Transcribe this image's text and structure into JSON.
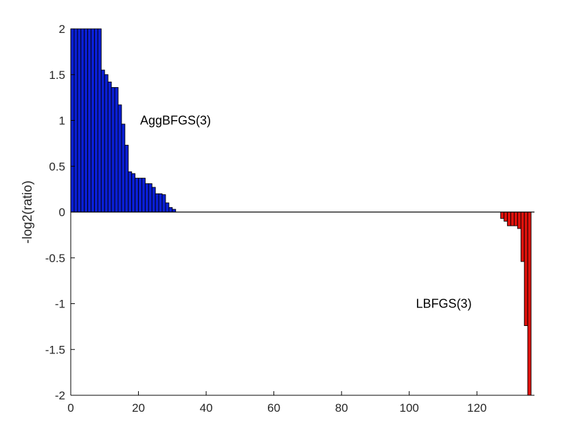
{
  "chart_data": {
    "type": "bar",
    "ylabel": "-log2(ratio)",
    "xlabel": "",
    "title": "",
    "xlim": [
      0,
      137
    ],
    "ylim": [
      -2,
      2
    ],
    "xticks": [
      0,
      20,
      40,
      60,
      80,
      100,
      120
    ],
    "yticks": [
      2,
      1.5,
      1,
      0.5,
      0,
      -0.5,
      -1,
      -1.5,
      -2
    ],
    "grid": false,
    "series": [
      {
        "color": "#0a1fd6",
        "x": [
          1,
          2,
          3,
          4,
          5,
          6,
          7,
          8,
          9,
          10,
          11,
          12,
          13,
          14,
          15,
          16,
          17,
          18,
          19,
          20,
          21,
          22,
          23,
          24,
          25,
          26,
          27,
          28,
          29,
          30,
          31
        ],
        "values": [
          2,
          2,
          2,
          2,
          2,
          2,
          2,
          2,
          2,
          1.55,
          1.5,
          1.42,
          1.36,
          1.36,
          1.17,
          0.96,
          0.73,
          0.44,
          0.42,
          0.37,
          0.37,
          0.37,
          0.31,
          0.31,
          0.27,
          0.2,
          0.2,
          0.19,
          0.1,
          0.05,
          0.03
        ]
      },
      {
        "color": "#e0120c",
        "x": [
          128,
          129,
          130,
          131,
          132,
          133,
          134,
          135,
          136
        ],
        "values": [
          -0.07,
          -0.1,
          -0.15,
          -0.15,
          -0.15,
          -0.18,
          -0.54,
          -1.24,
          -2
        ]
      }
    ],
    "annotations": [
      {
        "text": "AggBFGS(3)",
        "x": 20.5,
        "y": 1.0
      },
      {
        "text": "LBFGS(3)",
        "x": 102,
        "y": -1.0
      }
    ]
  }
}
